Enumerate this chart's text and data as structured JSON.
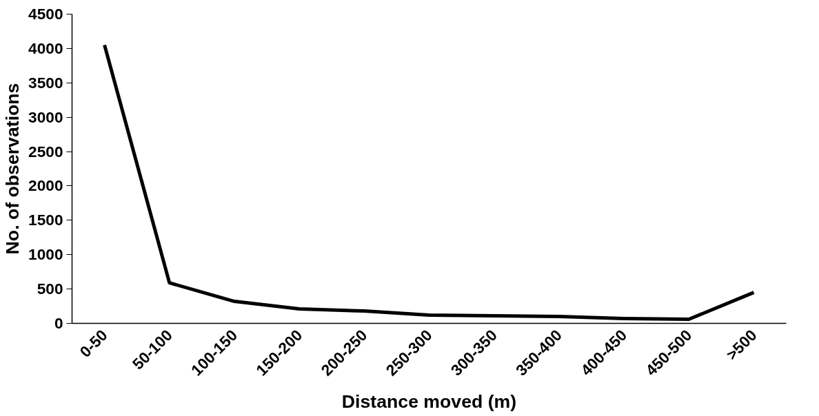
{
  "chart_data": {
    "type": "line",
    "xlabel": "Distance moved (m)",
    "ylabel": "No. of observations",
    "categories": [
      "0-50",
      "50-100",
      "100-150",
      "150-200",
      "200-250",
      "250-300",
      "300-350",
      "350-400",
      "400-450",
      "450-500",
      ">500"
    ],
    "series": [
      {
        "color": "#000000",
        "values": [
          4050,
          590,
          320,
          210,
          180,
          120,
          110,
          100,
          70,
          60,
          450
        ]
      }
    ],
    "ylim": [
      0,
      4500
    ],
    "yticks": [
      0,
      500,
      1000,
      1500,
      2000,
      2500,
      3000,
      3500,
      4000,
      4500
    ],
    "grid": false,
    "marker": "none",
    "line_style": "solid"
  }
}
